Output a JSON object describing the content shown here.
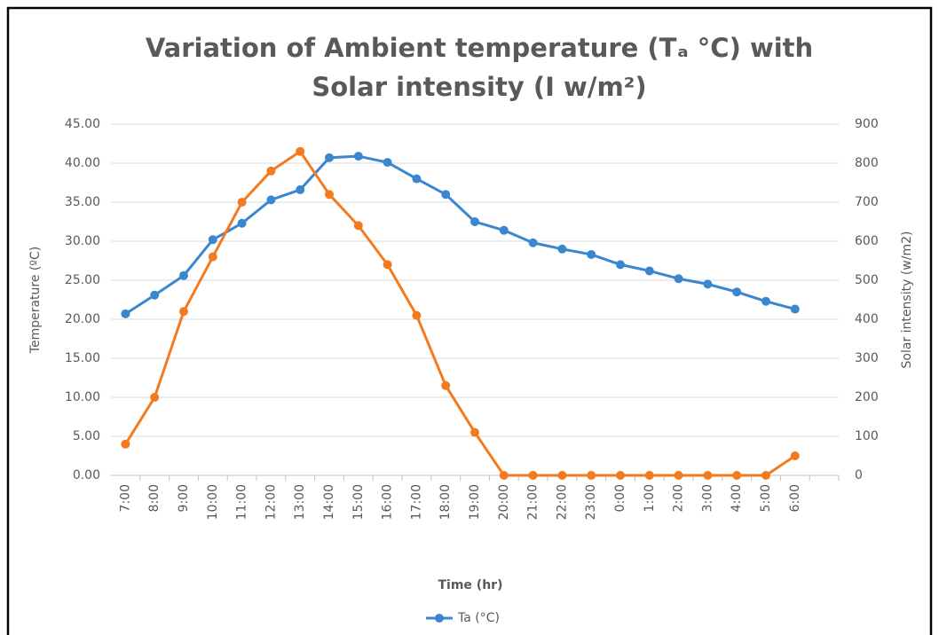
{
  "chart_data": {
    "type": "line",
    "title": "Variation of Ambient temperature (Tₐ °C) with Solar intensity (I w/m²)",
    "x_label": "Time (hr)",
    "y_label": "Temperature (ºC)",
    "y2_label": "Solar intensity (w/m2)",
    "categories": [
      "7:00",
      "8:00",
      "9:00",
      "10:00",
      "11:00",
      "12:00",
      "13:00",
      "14:00",
      "15:00",
      "16:00",
      "17:00",
      "18:00",
      "19:00",
      "20:00",
      "21:00",
      "22:00",
      "23:00",
      "0:00",
      "1:00",
      "2:00",
      "3:00",
      "4:00",
      "5:00",
      "6:00",
      null
    ],
    "series": [
      {
        "name": "Ta (°C)",
        "color": "#3a87d0",
        "values": [
          20.7,
          23.1,
          25.6,
          30.2,
          32.3,
          35.3,
          36.6,
          40.7,
          40.9,
          40.1,
          38.0,
          36.0,
          32.5,
          31.4,
          29.8,
          29.0,
          28.3,
          27.0,
          26.2,
          25.2,
          24.5,
          23.5,
          22.3,
          21.3,
          null
        ]
      },
      {
        "color": "#f47a1f",
        "axis": "y2",
        "values": [
          80,
          200,
          420,
          560,
          700,
          780,
          830,
          720,
          640,
          540,
          410,
          230,
          110,
          0,
          0,
          0,
          0,
          0,
          0,
          0,
          0,
          0,
          0,
          50,
          null
        ]
      }
    ],
    "ylim": [
      0,
      45
    ],
    "yticks": [
      {
        "value": 0,
        "label": "0.00"
      },
      {
        "value": 5,
        "label": "5.00"
      },
      {
        "value": 10,
        "label": "10.00"
      },
      {
        "value": 15,
        "label": "15.00"
      },
      {
        "value": 20,
        "label": "20.00"
      },
      {
        "value": 25,
        "label": "25.00"
      },
      {
        "value": 30,
        "label": "30.00"
      },
      {
        "value": 35,
        "label": "35.00"
      },
      {
        "value": 40,
        "label": "40.00"
      },
      {
        "value": 45,
        "label": "45.00"
      }
    ],
    "y2lim": [
      0,
      900
    ],
    "y2ticks": [
      0,
      100,
      200,
      300,
      400,
      500,
      600,
      700,
      800,
      900
    ],
    "grid": true
  }
}
